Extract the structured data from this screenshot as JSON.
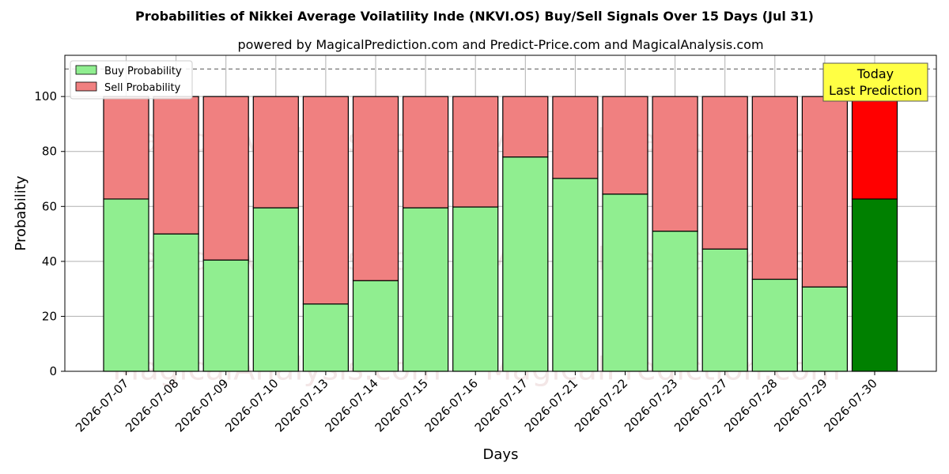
{
  "chart_data": {
    "type": "bar",
    "stacked": true,
    "title": "Probabilities of Nikkei Average Voilatility Inde (NKVI.OS) Buy/Sell Signals Over 15 Days (Jul 31)",
    "subtitle": "powered by MagicalPrediction.com and Predict-Price.com and MagicalAnalysis.com",
    "xlabel": "Days",
    "ylabel": "Probability",
    "ylim": [
      0,
      115
    ],
    "yticks": [
      0,
      20,
      40,
      60,
      80,
      100
    ],
    "reference_line": 110,
    "grid": true,
    "legend_position": "top-left",
    "categories": [
      "2026-07-07",
      "2026-07-08",
      "2026-07-09",
      "2026-07-10",
      "2026-07-13",
      "2026-07-14",
      "2026-07-15",
      "2026-07-16",
      "2026-07-17",
      "2026-07-21",
      "2026-07-22",
      "2026-07-23",
      "2026-07-27",
      "2026-07-28",
      "2026-07-29",
      "2026-07-30"
    ],
    "series": [
      {
        "name": "Buy Probability",
        "color": "#90ee90",
        "values": [
          62.7,
          50.0,
          40.5,
          59.5,
          24.5,
          33.0,
          59.5,
          59.8,
          78.0,
          70.2,
          64.5,
          51.0,
          44.5,
          33.5,
          30.7,
          62.7
        ]
      },
      {
        "name": "Sell Probability",
        "color": "#f08080",
        "values": [
          37.3,
          50.0,
          59.5,
          40.5,
          75.5,
          67.0,
          40.5,
          40.2,
          22.0,
          29.8,
          35.5,
          49.0,
          55.5,
          66.5,
          69.3,
          37.3
        ]
      }
    ],
    "today_colors": {
      "buy": "#008000",
      "sell": "#ff0000"
    },
    "today_label": [
      "Today",
      "Last Prediction"
    ],
    "watermarks": [
      "MagicalAnalysis.com",
      "MagicalPrediction.com"
    ]
  }
}
